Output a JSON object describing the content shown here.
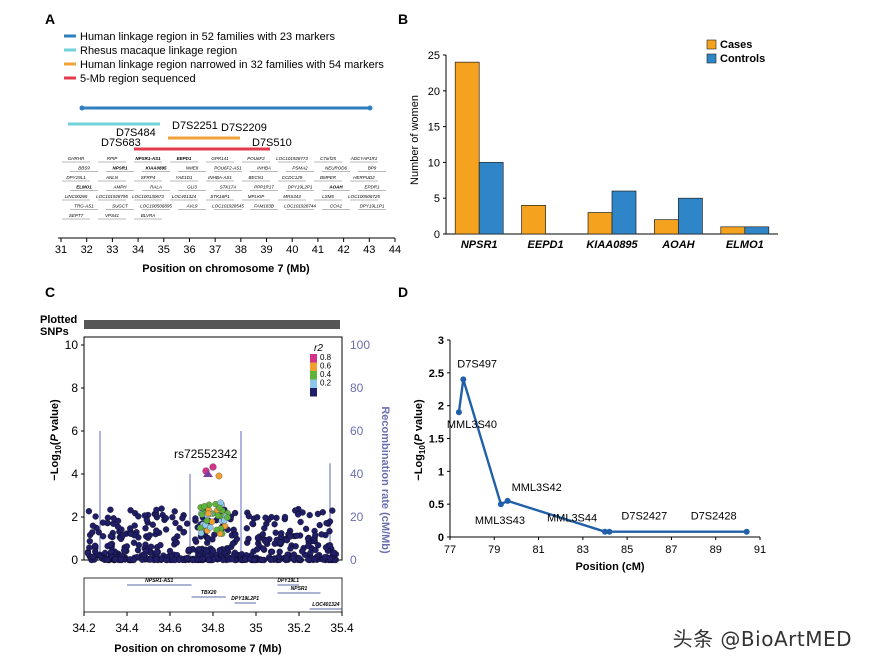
{
  "panels": {
    "a": {
      "label": "A",
      "legend": [
        {
          "text": "Human linkage region in 52 families with 23 markers",
          "color": "#2f7fc1"
        },
        {
          "text": "Rhesus macaque linkage region",
          "color": "#6fd3d9"
        },
        {
          "text": "Human linkage region narrowed in 32 families with 54 markers",
          "color": "#f2a23a"
        },
        {
          "text": "5-Mb region sequenced",
          "color": "#e33b4b"
        }
      ],
      "markers": [
        "D7S2251",
        "D7S2209",
        "D7S484",
        "D7S683",
        "D7S510"
      ],
      "genes": [
        "GHRHR",
        "RPIP",
        "NPSR1-AS1",
        "EEPD1",
        "GPR141",
        "POU6F2",
        "LOC101928773",
        "C7orf25",
        "ADCYAP1R1",
        "BBS9",
        "NPSR1",
        "KIAA0895",
        "NME8",
        "POU6F2-AS1",
        "INHBA",
        "PSMA2",
        "NEUROD6",
        "BP9",
        "DPY19L1",
        "ANLN",
        "SFRP4",
        "YAE1D1",
        "INHBA-AS1",
        "BECN1",
        "CCDC129",
        "BMPER",
        "HERPUD2",
        "ELMO1",
        "AMPH",
        "RALA",
        "GLI3",
        "STK17A",
        "PPP1R17",
        "DPY19L2P1",
        "AOAH",
        "EPDR1",
        "LINC00265",
        "LOC101928795",
        "LOC100130673",
        "LOC401324",
        "STK16P1",
        "MPLKIP",
        "MRS343",
        "LSM5",
        "LOC100506725",
        "TRG-AS1",
        "SUGCT",
        "LOC100506895",
        "AVL9",
        "LOC101928545",
        "FAM183B",
        "LOC101928744",
        "COA1",
        "DPY19L1P1",
        "SEPT7",
        "VPS41",
        "BLVRA"
      ],
      "axis_title": "Position on chromosome 7 (Mb)",
      "ticks": [
        "31",
        "32",
        "33",
        "34",
        "35",
        "36",
        "37",
        "38",
        "39",
        "40",
        "41",
        "42",
        "43",
        "44"
      ]
    },
    "b": {
      "label": "B",
      "ylabel": "Number of women",
      "yticks": [
        "0",
        "5",
        "10",
        "15",
        "20",
        "25"
      ],
      "legend": [
        "Cases",
        "Controls"
      ]
    },
    "c": {
      "label": "C",
      "plotted_snps_label": "Plotted\nSNPs",
      "ylabel_left": "−Log10(P value)",
      "ylabel_right": "Recombination rate (cM/Mb)",
      "yticks_left": [
        "0",
        "2",
        "4",
        "6",
        "8",
        "10"
      ],
      "yticks_right": [
        "0",
        "20",
        "40",
        "60",
        "80",
        "100"
      ],
      "r2_label": "r2",
      "r2_legend": [
        {
          "text": "0.8",
          "color": "#d4338a"
        },
        {
          "text": "0.6",
          "color": "#f0a030"
        },
        {
          "text": "0.4",
          "color": "#5fb33a"
        },
        {
          "text": "0.2",
          "color": "#8ec7e8"
        },
        {
          "text": "",
          "color": "#1f1e66"
        }
      ],
      "lead_snp": "rs72552342",
      "genes": [
        "NPSR1-AS1",
        "DPY19L1",
        "TBX20",
        "NPSR1",
        "DPY19L2P1",
        "LOC401324"
      ],
      "xticks": [
        "34.2",
        "34.4",
        "34.6",
        "34.8",
        "35",
        "35.2",
        "35.4"
      ],
      "axis_title": "Position on chromosome 7 (Mb)"
    },
    "d": {
      "label": "D",
      "xlabel": "Position (cM)",
      "ylabel": "−Log10(P value)",
      "xticks": [
        "77",
        "79",
        "81",
        "83",
        "85",
        "87",
        "89",
        "91"
      ],
      "yticks": [
        "0",
        "0.5",
        "1",
        "1.5",
        "2",
        "2.5",
        "3"
      ]
    }
  },
  "chart_data": [
    {
      "type": "bar",
      "title": "",
      "categories": [
        "NPSR1",
        "EEPD1",
        "KIAA0895",
        "AOAH",
        "ELMO1"
      ],
      "series": [
        {
          "name": "Cases",
          "color": "#f5a21e",
          "values": [
            24,
            4,
            3,
            2,
            1
          ]
        },
        {
          "name": "Controls",
          "color": "#2e86c9",
          "values": [
            10,
            0,
            6,
            5,
            1
          ]
        }
      ],
      "xlabel": "",
      "ylabel": "Number of women",
      "ylim": [
        0,
        25
      ]
    },
    {
      "type": "line",
      "title": "",
      "xlabel": "Position (cM)",
      "ylabel": "−Log10(P value)",
      "xlim": [
        77,
        91
      ],
      "ylim": [
        0,
        3
      ],
      "series": [
        {
          "name": "linkage",
          "color": "#2160a8",
          "x": [
            77.4,
            77.6,
            79.3,
            79.6,
            84.0,
            84.2,
            90.4
          ],
          "y": [
            1.9,
            2.4,
            0.5,
            0.55,
            0.08,
            0.08,
            0.08
          ],
          "labels": [
            "MML3S40",
            "D7S497",
            "MML3S43",
            "MML3S42",
            "MML3S44",
            "D7S2427",
            "D7S2428"
          ]
        }
      ]
    }
  ]
}
